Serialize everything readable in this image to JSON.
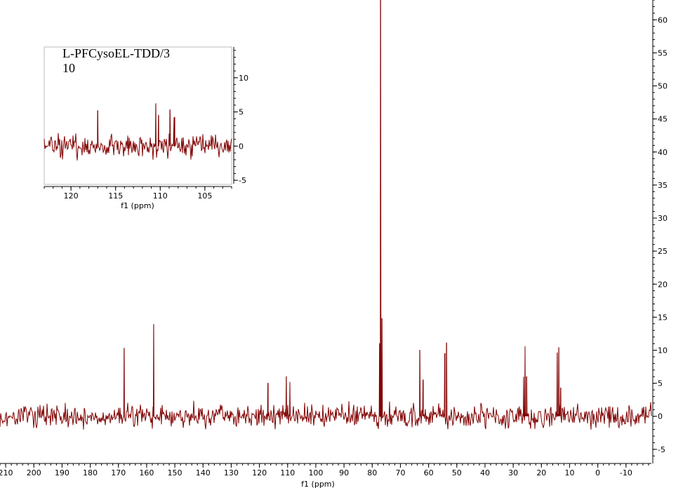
{
  "sample": {
    "name": "L-PFCysoEL-TDD/3",
    "number": "10"
  },
  "colors": {
    "trace": "#800000",
    "axis": "#000000",
    "inset_frame": "#bbbbbb"
  },
  "chart_data": [
    {
      "type": "line",
      "title": "",
      "xlabel": "f1 (ppm)",
      "ylabel": "",
      "x_reversed": true,
      "xlim": [
        212,
        -19
      ],
      "ylim": [
        -6.5,
        63
      ],
      "x_ticks": [
        210,
        200,
        190,
        180,
        170,
        160,
        150,
        140,
        130,
        120,
        110,
        100,
        90,
        80,
        70,
        60,
        50,
        40,
        30,
        20,
        10,
        0,
        -10
      ],
      "y_ticks": [
        -5,
        0,
        5,
        10,
        15,
        20,
        25,
        30,
        35,
        40,
        45,
        50,
        55,
        60
      ],
      "y_axis_side": "right",
      "grid": false,
      "noise_level": [
        -2.5,
        2.5
      ],
      "peaks": [
        {
          "x": 168.0,
          "y": 10.3
        },
        {
          "x": 157.5,
          "y": 13.9
        },
        {
          "x": 117.0,
          "y": 5.0
        },
        {
          "x": 110.5,
          "y": 6.0
        },
        {
          "x": 109.2,
          "y": 5.2
        },
        {
          "x": 77.4,
          "y": 11.0
        },
        {
          "x": 77.0,
          "y": 63.0
        },
        {
          "x": 76.5,
          "y": 14.8
        },
        {
          "x": 63.1,
          "y": 10.0
        },
        {
          "x": 62.0,
          "y": 5.5
        },
        {
          "x": 54.3,
          "y": 9.5
        },
        {
          "x": 53.6,
          "y": 11.1
        },
        {
          "x": 26.3,
          "y": 6.0
        },
        {
          "x": 25.8,
          "y": 10.6
        },
        {
          "x": 25.2,
          "y": 6.0
        },
        {
          "x": 14.4,
          "y": 9.6
        },
        {
          "x": 13.8,
          "y": 10.4
        },
        {
          "x": 13.2,
          "y": 4.3
        }
      ]
    },
    {
      "type": "line",
      "title": "",
      "xlabel": "f1 (ppm)",
      "ylabel": "",
      "x_reversed": true,
      "xlim": [
        123,
        102
      ],
      "ylim": [
        -5.5,
        14.5
      ],
      "x_ticks": [
        120,
        115,
        110,
        105
      ],
      "y_ticks": [
        -5,
        0,
        5,
        10
      ],
      "y_axis_side": "right",
      "grid": false,
      "noise_level": [
        -2.5,
        2.5
      ],
      "peaks": [
        {
          "x": 117.0,
          "y": 5.2
        },
        {
          "x": 110.5,
          "y": 6.2
        },
        {
          "x": 110.2,
          "y": 4.5
        },
        {
          "x": 108.9,
          "y": 5.3
        },
        {
          "x": 108.4,
          "y": 4.2
        }
      ]
    }
  ]
}
